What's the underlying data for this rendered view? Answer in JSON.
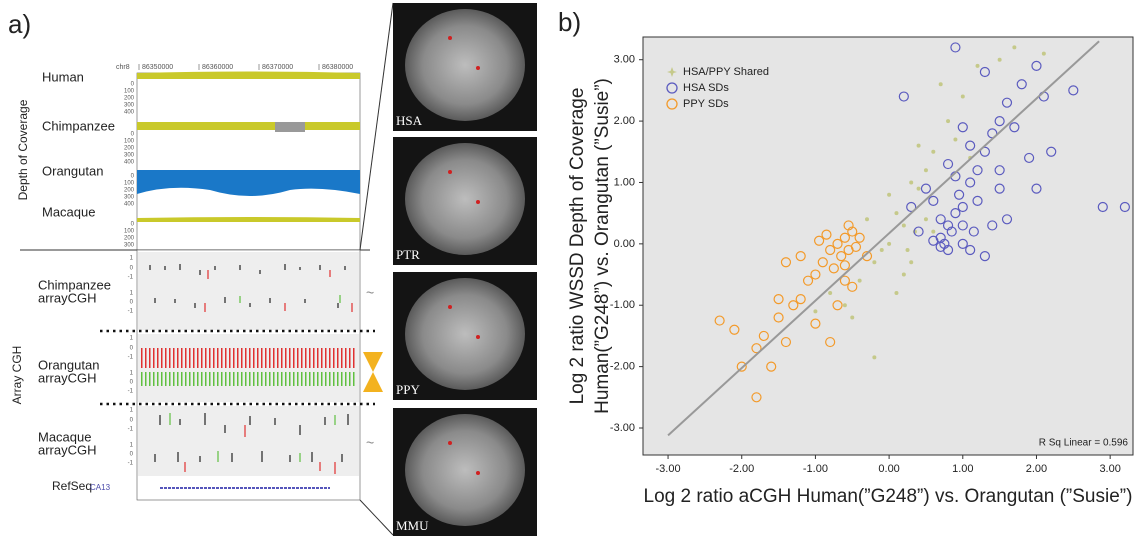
{
  "panel_a": {
    "label": "a)",
    "chromosome": "chr8",
    "positions": [
      86350000,
      86360000,
      86370000,
      86380000
    ],
    "depth_of_coverage": {
      "title": "Depth of Coverage",
      "tracks": [
        {
          "name": "Human",
          "ticks": [
            0,
            100,
            200,
            300,
            400
          ]
        },
        {
          "name": "Chimpanzee",
          "ticks": [
            0,
            100,
            200,
            300,
            400
          ]
        },
        {
          "name": "Orangutan",
          "ticks": [
            0,
            100,
            200,
            300,
            400
          ]
        },
        {
          "name": "Macaque",
          "ticks": [
            0,
            100,
            200,
            300
          ]
        }
      ]
    },
    "array_cgh": {
      "title": "Array CGH",
      "tracks": [
        {
          "name": [
            "Chimpanzee",
            "arrayCGH"
          ],
          "ticks": [
            1,
            0,
            -1,
            1,
            0,
            -1
          ]
        },
        {
          "name": [
            "Orangutan",
            "arrayCGH"
          ],
          "ticks": [
            1,
            0,
            -1,
            1,
            0,
            -1
          ]
        },
        {
          "name": [
            "Macaque",
            "arrayCGH"
          ],
          "ticks": [
            1,
            0,
            -1,
            1,
            0,
            -1
          ]
        }
      ],
      "refseq": {
        "name": "RefSeq",
        "gene": "CA13"
      }
    },
    "images": [
      {
        "label": "HSA"
      },
      {
        "label": "PTR"
      },
      {
        "label": "PPY"
      },
      {
        "label": "MMU"
      }
    ]
  },
  "chart_data": {
    "type": "scatter",
    "label": "b)",
    "xlabel": "Log 2 ratio aCGH Human(”G248”) vs. Orangutan (”Susie”)",
    "ylabel": [
      "Log 2 ratio  WSSD Depth of Coverage",
      "Human(”G248”) vs. Orangutan (”Susie”)"
    ],
    "annotation": "R Sq Linear = 0.596",
    "xlim": [
      -3.34,
      3.31
    ],
    "ylim": [
      -3.44,
      3.37
    ],
    "xticks": [
      {
        "value": -3,
        "label": "-3.00"
      },
      {
        "value": -2,
        "label": "-2.00"
      },
      {
        "value": -1,
        "label": "-1.00"
      },
      {
        "value": 0,
        "label": "0.00"
      },
      {
        "value": 1,
        "label": "1.00"
      },
      {
        "value": 2,
        "label": "2.00"
      },
      {
        "value": 3,
        "label": "3.00"
      }
    ],
    "yticks": [
      {
        "value": -3,
        "label": "-3.00"
      },
      {
        "value": -2,
        "label": "-2.00"
      },
      {
        "value": -1,
        "label": "-1.00"
      },
      {
        "value": 0,
        "label": "0.00"
      },
      {
        "value": 1,
        "label": "1.00"
      },
      {
        "value": 2,
        "label": "2.00"
      },
      {
        "value": 3,
        "label": "3.00"
      }
    ],
    "fit": {
      "x": [
        -3.0,
        2.85
      ],
      "y": [
        -3.12,
        3.3
      ],
      "color": "#999999"
    },
    "series": [
      {
        "name": "HSA/PPY Shared",
        "color": "#c5c98a",
        "marker": "star",
        "x": [
          0.0,
          0.2,
          -0.2,
          0.4,
          0.5,
          0.1,
          -0.3,
          0.3,
          0.6,
          0.8,
          1.0,
          1.2,
          1.5,
          1.7,
          -0.5,
          -0.4,
          -0.8,
          0.2,
          0.5,
          0.9,
          0.0,
          -0.1,
          0.3,
          0.7,
          0.4,
          -0.6,
          -1.0,
          0.1,
          0.6,
          1.1,
          2.1,
          -0.2,
          0.35,
          0.25
        ],
        "values": [
          0.0,
          0.3,
          -0.3,
          0.9,
          1.2,
          0.5,
          0.4,
          -0.3,
          1.5,
          2.0,
          2.4,
          2.9,
          3.0,
          3.2,
          -1.2,
          -0.6,
          -0.8,
          -0.5,
          0.4,
          1.7,
          0.8,
          -0.1,
          1.0,
          2.6,
          1.6,
          -1.0,
          -1.1,
          -0.8,
          0.2,
          1.4,
          3.1,
          -1.85,
          0.2,
          -0.1
        ]
      },
      {
        "name": "HSA SDs",
        "color": "#5b5bbf",
        "marker": "circle",
        "x": [
          0.7,
          0.8,
          0.75,
          0.9,
          0.85,
          1.0,
          0.6,
          0.95,
          1.1,
          1.2,
          0.7,
          0.8,
          1.0,
          1.3,
          1.4,
          1.5,
          1.2,
          0.9,
          1.6,
          1.8,
          2.0,
          1.5,
          1.1,
          0.8,
          1.7,
          2.1,
          2.5,
          1.3,
          0.9,
          1.0,
          1.15,
          0.5,
          0.4,
          1.3,
          1.6,
          2.0,
          1.9,
          1.5,
          2.9,
          3.2,
          0.2,
          0.3,
          1.0,
          2.2,
          0.6,
          1.1,
          1.4,
          0.7
        ],
        "values": [
          0.1,
          0.3,
          0.0,
          0.5,
          0.2,
          0.6,
          0.05,
          0.8,
          1.0,
          1.2,
          0.4,
          -0.1,
          0.3,
          1.5,
          1.8,
          2.0,
          0.7,
          1.1,
          2.3,
          2.6,
          2.9,
          1.2,
          1.6,
          1.3,
          1.9,
          2.4,
          2.5,
          2.8,
          3.2,
          0.0,
          0.2,
          0.9,
          0.2,
          -0.2,
          0.4,
          0.9,
          1.4,
          0.9,
          0.6,
          0.6,
          2.4,
          0.6,
          1.9,
          1.5,
          0.7,
          -0.1,
          0.3,
          -0.05
        ]
      },
      {
        "name": "PPY SDs",
        "color": "#f39a2a",
        "marker": "circle",
        "x": [
          -0.6,
          -0.55,
          -0.7,
          -0.5,
          -0.65,
          -0.8,
          -0.45,
          -0.6,
          -0.75,
          -0.9,
          -1.0,
          -0.55,
          -0.4,
          -0.85,
          -1.1,
          -1.2,
          -1.4,
          -1.3,
          -1.5,
          -1.0,
          -0.7,
          -0.5,
          -1.7,
          -1.8,
          -2.0,
          -1.8,
          -1.6,
          -2.1,
          -2.3,
          -1.2,
          -0.95,
          -0.3,
          -0.6,
          -1.4,
          -0.8,
          -1.5
        ],
        "values": [
          0.1,
          -0.1,
          0.0,
          0.2,
          -0.2,
          -0.1,
          -0.05,
          -0.35,
          -0.4,
          -0.3,
          -0.5,
          0.3,
          0.1,
          0.15,
          -0.6,
          -0.9,
          -0.3,
          -1.0,
          -1.2,
          -1.3,
          -1.0,
          -0.7,
          -1.5,
          -1.7,
          -2.0,
          -2.5,
          -2.0,
          -1.4,
          -1.25,
          -0.2,
          0.05,
          -0.2,
          -0.6,
          -1.6,
          -1.6,
          -0.9
        ]
      }
    ]
  }
}
